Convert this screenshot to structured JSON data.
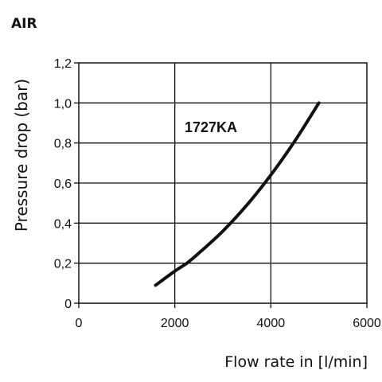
{
  "chart_data": {
    "type": "line",
    "title": "AIR",
    "xlabel": "Flow rate in [l/min]",
    "ylabel": "Pressure drop (bar)",
    "xlim": [
      0,
      6000
    ],
    "ylim": [
      0,
      1.2
    ],
    "x_ticks": [
      "0",
      "2000",
      "4000",
      "6000"
    ],
    "y_ticks": [
      "0",
      "0,2",
      "0,4",
      "0,6",
      "0,8",
      "1,0",
      "1,2"
    ],
    "grid": true,
    "annotations": [
      "1727KA"
    ],
    "series": [
      {
        "x": [
          1600,
          2000,
          2250,
          2500,
          3000,
          3500,
          4000,
          4500,
          5000
        ],
        "values": [
          0.09,
          0.16,
          0.2,
          0.25,
          0.36,
          0.49,
          0.64,
          0.81,
          1.0
        ]
      }
    ]
  }
}
